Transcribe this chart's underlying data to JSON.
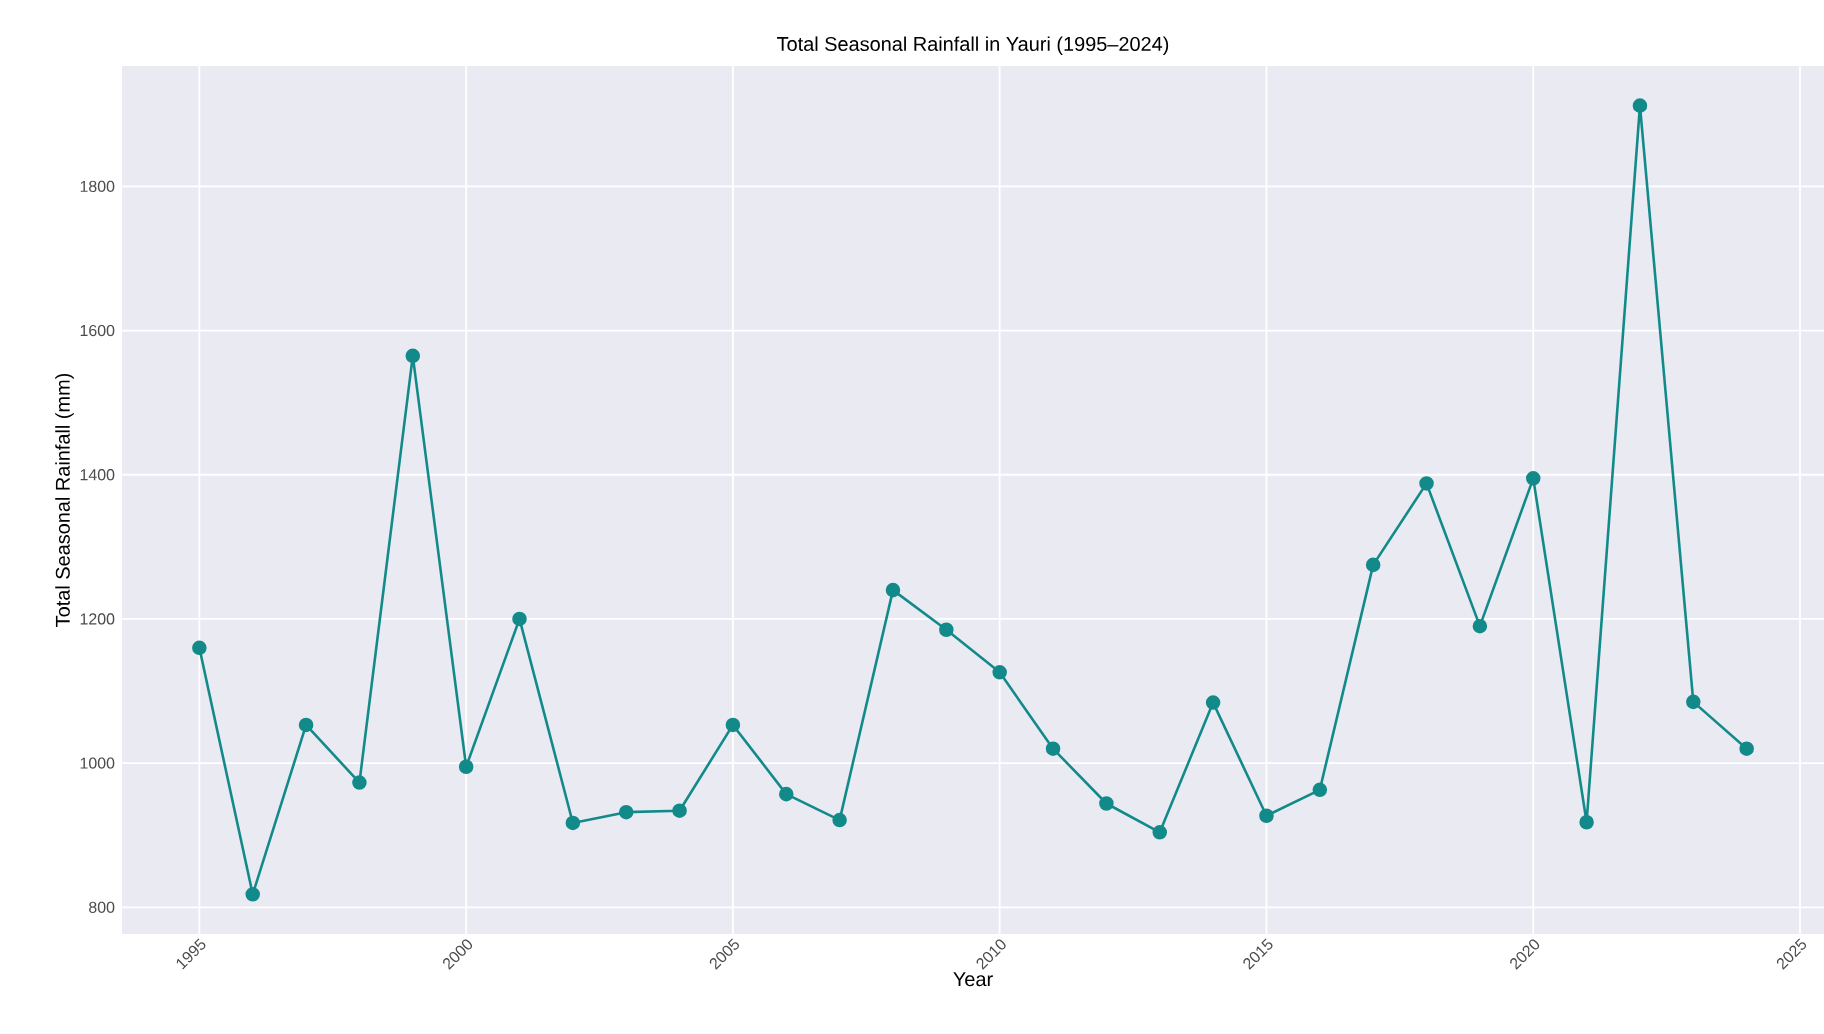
{
  "chart_data": {
    "type": "line",
    "title": "Total Seasonal Rainfall in Yauri (1995–2024)",
    "xlabel": "Year",
    "ylabel": "Total Seasonal Rainfall (mm)",
    "x": [
      1995,
      1996,
      1997,
      1998,
      1999,
      2000,
      2001,
      2002,
      2003,
      2004,
      2005,
      2006,
      2007,
      2008,
      2009,
      2010,
      2011,
      2012,
      2013,
      2014,
      2015,
      2016,
      2017,
      2018,
      2019,
      2020,
      2021,
      2022,
      2023,
      2024
    ],
    "series": [
      {
        "color": "#138a8a",
        "values": [
          1160,
          818,
          1053,
          973,
          1565,
          995,
          1200,
          917,
          932,
          934,
          1053,
          957,
          921,
          1240,
          1185,
          1126,
          1020,
          944,
          904,
          1084,
          927,
          963,
          1275,
          1388,
          1190,
          1395,
          918,
          1912,
          1085,
          1020
        ]
      }
    ],
    "xlim": [
      1993.55,
      2025.45
    ],
    "ylim": [
      763,
      1967
    ],
    "xticks": [
      1995,
      2000,
      2005,
      2010,
      2015,
      2020,
      2025
    ],
    "yticks": [
      800,
      1000,
      1200,
      1400,
      1600,
      1800
    ],
    "grid": true,
    "marker": "circle",
    "line_style": "solid"
  }
}
